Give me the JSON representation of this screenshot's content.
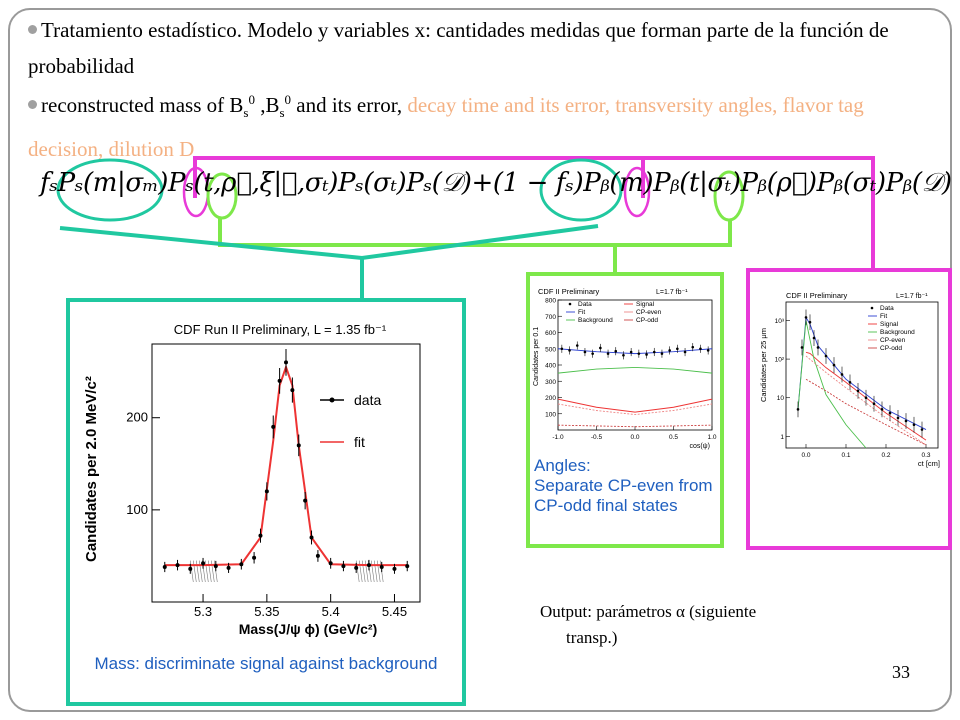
{
  "bullets": [
    {
      "text": "Tratamiento estadístico. Modelo y variables x: cantidades medidas que forman parte de la función de probabilidad"
    },
    {
      "prefix": "reconstructed mass of",
      "sup": "0",
      "sup2": "0",
      "mid": "and its error,",
      "highlight": "decay time and its error, transversity angles, flavor tag decision, dilution D"
    }
  ],
  "formula": "fₛPₛ(m|σₘ)Pₛ(t,ρ⃗,ξ|𝒟,σₜ)Pₛ(σₜ)Pₛ(𝒟)+(1 − fₛ)Pᵦ(m)Pᵦ(t|σₜ)Pᵦ(ρ⃗)Pᵦ(σₜ)Pᵦ(𝒟)",
  "captions": {
    "mass": "Mass: discriminate signal against background",
    "angles": "Angles:\nSeparate CP-even from  CP-odd final states"
  },
  "output_note": {
    "line1": "Output: parámetros α (siguiente",
    "line2": "transp.)"
  },
  "page_number": "33",
  "colors": {
    "teal": "#20c8a0",
    "green": "#7ee84a",
    "magenta": "#e83ad8",
    "highlight": "#f4b183",
    "caption": "#1f5fbf"
  },
  "mass_plot": {
    "title": "CDF Run II Preliminary, L = 1.35 fb⁻¹",
    "ylabel": "Candidates per 2.0 MeV/c²",
    "xlabel": "Mass(J/ψ ϕ)   (GeV/c²)",
    "legend": [
      "data",
      "fit"
    ]
  },
  "angles_plot": {
    "title": "CDF II Preliminary",
    "lumi": "L=1.7 fb⁻¹",
    "ylabel": "Candidates per 0.1",
    "xlabel": "cos(ψ)",
    "legend": [
      "Data",
      "Fit",
      "Background",
      "Signal",
      "CP-even",
      "CP-odd"
    ]
  },
  "ct_plot": {
    "title": "CDF II Preliminary",
    "lumi": "L=1.7 fb⁻¹",
    "ylabel": "Candidates per 25 μm",
    "xlabel": "ct [cm]",
    "legend": [
      "Data",
      "Fit",
      "Signal",
      "Background",
      "CP-even",
      "CP-odd"
    ]
  },
  "chart_data": [
    {
      "type": "scatter",
      "title": "CDF Run II Preliminary, L = 1.35 fb⁻¹",
      "xlabel": "Mass(J/ψ ϕ)   (GeV/c²)",
      "ylabel": "Candidates per 2.0 MeV/c²",
      "xlim": [
        5.26,
        5.47
      ],
      "ylim": [
        0,
        280
      ],
      "xticks": [
        "5.3",
        "5.35",
        "5.4",
        "5.45"
      ],
      "yticks": [
        "100",
        "200"
      ],
      "series": [
        {
          "name": "data",
          "x": [
            5.27,
            5.28,
            5.29,
            5.3,
            5.31,
            5.32,
            5.33,
            5.34,
            5.345,
            5.35,
            5.355,
            5.36,
            5.365,
            5.37,
            5.375,
            5.38,
            5.385,
            5.39,
            5.4,
            5.41,
            5.42,
            5.43,
            5.44,
            5.45,
            5.46
          ],
          "y": [
            38,
            40,
            36,
            42,
            39,
            37,
            41,
            48,
            72,
            120,
            190,
            240,
            260,
            230,
            170,
            110,
            70,
            50,
            42,
            39,
            37,
            40,
            38,
            36,
            39
          ]
        },
        {
          "name": "fit",
          "x": [
            5.27,
            5.3,
            5.33,
            5.345,
            5.355,
            5.36,
            5.365,
            5.37,
            5.375,
            5.385,
            5.4,
            5.43,
            5.46
          ],
          "y": [
            40,
            40,
            41,
            70,
            175,
            235,
            255,
            235,
            170,
            70,
            41,
            40,
            40
          ]
        }
      ]
    },
    {
      "type": "scatter",
      "title": "CDF II Preliminary",
      "xlabel": "cos(ψ)",
      "ylabel": "Candidates per 0.1",
      "xlim": [
        -1.0,
        1.0
      ],
      "ylim": [
        0,
        800
      ],
      "xticks": [
        "-1.0",
        "-0.5",
        "0.0",
        "0.5",
        "1.0"
      ],
      "yticks": [
        "100",
        "200",
        "300",
        "400",
        "500",
        "600",
        "700",
        "800"
      ],
      "series": [
        {
          "name": "Data",
          "x": [
            -0.95,
            -0.85,
            -0.75,
            -0.65,
            -0.55,
            -0.45,
            -0.35,
            -0.25,
            -0.15,
            -0.05,
            0.05,
            0.15,
            0.25,
            0.35,
            0.45,
            0.55,
            0.65,
            0.75,
            0.85,
            0.95
          ],
          "y": [
            500,
            490,
            520,
            480,
            470,
            505,
            470,
            485,
            460,
            480,
            470,
            465,
            480,
            470,
            490,
            500,
            480,
            510,
            500,
            490
          ]
        },
        {
          "name": "Fit",
          "x": [
            -1,
            -0.5,
            0,
            0.5,
            1
          ],
          "y": [
            500,
            482,
            470,
            482,
            500
          ]
        },
        {
          "name": "Background",
          "x": [
            -1,
            -0.5,
            0,
            0.5,
            1
          ],
          "y": [
            350,
            375,
            385,
            375,
            350
          ]
        },
        {
          "name": "Signal",
          "x": [
            -1,
            -0.5,
            0,
            0.5,
            1
          ],
          "y": [
            190,
            140,
            110,
            140,
            190
          ]
        },
        {
          "name": "CP-even",
          "x": [
            -1,
            -0.5,
            0,
            0.5,
            1
          ],
          "y": [
            160,
            120,
            95,
            120,
            160
          ]
        },
        {
          "name": "CP-odd",
          "x": [
            -1,
            -0.5,
            0,
            0.5,
            1
          ],
          "y": [
            30,
            25,
            20,
            25,
            30
          ]
        }
      ]
    },
    {
      "type": "scatter",
      "title": "CDF II Preliminary",
      "xlabel": "ct [cm]",
      "ylabel": "Candidates per 25 μm",
      "xlim": [
        -0.05,
        0.33
      ],
      "ylim": [
        0.5,
        3000
      ],
      "log_y": true,
      "xticks": [
        "0.0",
        "0.1",
        "0.2",
        "0.3"
      ],
      "yticks": [
        "1",
        "10",
        "10²",
        "10³"
      ],
      "series": [
        {
          "name": "Data",
          "x": [
            -0.02,
            -0.01,
            0.0,
            0.01,
            0.02,
            0.03,
            0.05,
            0.07,
            0.09,
            0.11,
            0.13,
            0.15,
            0.17,
            0.19,
            0.21,
            0.23,
            0.25,
            0.27,
            0.29
          ],
          "y": [
            5,
            200,
            1200,
            900,
            350,
            200,
            120,
            70,
            40,
            25,
            15,
            10,
            7,
            5,
            4,
            3,
            2.5,
            2,
            1.5
          ]
        },
        {
          "name": "Fit",
          "x": [
            -0.02,
            0.0,
            0.01,
            0.03,
            0.1,
            0.2,
            0.3
          ],
          "y": [
            5,
            1200,
            800,
            220,
            30,
            5,
            1.5
          ]
        },
        {
          "name": "Signal",
          "x": [
            0.0,
            0.01,
            0.05,
            0.1,
            0.2,
            0.3
          ],
          "y": [
            150,
            140,
            60,
            25,
            4,
            0.8
          ]
        },
        {
          "name": "Background",
          "x": [
            -0.02,
            0.0,
            0.02,
            0.05,
            0.1,
            0.15
          ],
          "y": [
            5,
            1000,
            100,
            12,
            2,
            0.5
          ]
        },
        {
          "name": "CP-even",
          "x": [
            0.0,
            0.05,
            0.1,
            0.2,
            0.3
          ],
          "y": [
            120,
            45,
            18,
            3,
            0.6
          ]
        },
        {
          "name": "CP-odd",
          "x": [
            0.0,
            0.05,
            0.1,
            0.2,
            0.3
          ],
          "y": [
            30,
            15,
            7,
            2,
            0.6
          ]
        }
      ]
    }
  ]
}
